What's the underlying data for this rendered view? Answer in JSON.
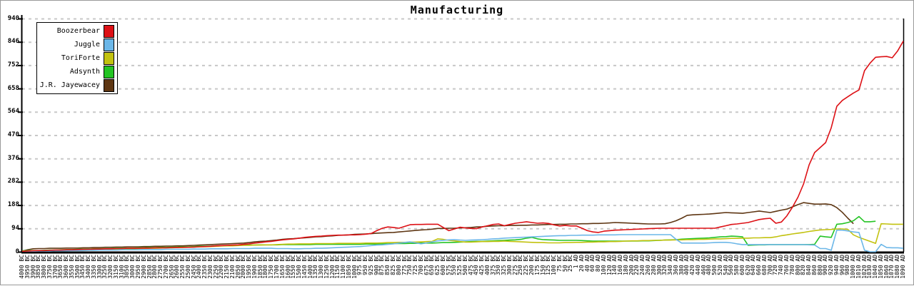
{
  "chart_data": {
    "type": "line",
    "title": "Manufacturing",
    "xlabel": "",
    "ylabel": "",
    "ylim": [
      0,
      940
    ],
    "y_ticks": [
      0,
      94,
      188,
      282,
      376,
      470,
      564,
      658,
      752,
      846,
      940
    ],
    "grid": "horizontal-dashed",
    "legend_position": "top-left",
    "grid_color": "#c8c8c8",
    "axis_color": "#000000",
    "categories": [
      "4000 BC",
      "3950 BC",
      "3900 BC",
      "3850 BC",
      "3800 BC",
      "3750 BC",
      "3700 BC",
      "3650 BC",
      "3600 BC",
      "3550 BC",
      "3500 BC",
      "3450 BC",
      "3400 BC",
      "3350 BC",
      "3300 BC",
      "3250 BC",
      "3200 BC",
      "3150 BC",
      "3100 BC",
      "3050 BC",
      "3000 BC",
      "2950 BC",
      "2900 BC",
      "2850 BC",
      "2800 BC",
      "2750 BC",
      "2700 BC",
      "2650 BC",
      "2600 BC",
      "2550 BC",
      "2500 BC",
      "2450 BC",
      "2400 BC",
      "2350 BC",
      "2300 BC",
      "2250 BC",
      "2200 BC",
      "2150 BC",
      "2100 BC",
      "2050 BC",
      "2000 BC",
      "1950 BC",
      "1900 BC",
      "1850 BC",
      "1800 BC",
      "1750 BC",
      "1700 BC",
      "1650 BC",
      "1600 BC",
      "1550 BC",
      "1500 BC",
      "1450 BC",
      "1400 BC",
      "1350 BC",
      "1300 BC",
      "1250 BC",
      "1200 BC",
      "1150 BC",
      "1100 BC",
      "1050 BC",
      "1000 BC",
      "975 BC",
      "950 BC",
      "925 BC",
      "900 BC",
      "875 BC",
      "850 BC",
      "825 BC",
      "800 BC",
      "775 BC",
      "750 BC",
      "725 BC",
      "700 BC",
      "675 BC",
      "650 BC",
      "625 BC",
      "600 BC",
      "575 BC",
      "550 BC",
      "525 BC",
      "500 BC",
      "475 BC",
      "450 BC",
      "425 BC",
      "400 BC",
      "375 BC",
      "350 BC",
      "325 BC",
      "300 BC",
      "275 BC",
      "250 BC",
      "225 BC",
      "200 BC",
      "175 BC",
      "150 BC",
      "125 BC",
      "100 BC",
      "75 BC",
      "50 BC",
      "25 BC",
      "1 AD",
      "20 AD",
      "40 AD",
      "60 AD",
      "80 AD",
      "100 AD",
      "120 AD",
      "140 AD",
      "160 AD",
      "180 AD",
      "200 AD",
      "220 AD",
      "240 AD",
      "260 AD",
      "280 AD",
      "300 AD",
      "320 AD",
      "340 AD",
      "360 AD",
      "380 AD",
      "400 AD",
      "420 AD",
      "440 AD",
      "460 AD",
      "480 AD",
      "500 AD",
      "520 AD",
      "540 AD",
      "560 AD",
      "580 AD",
      "600 AD",
      "620 AD",
      "640 AD",
      "660 AD",
      "680 AD",
      "700 AD",
      "720 AD",
      "740 AD",
      "760 AD",
      "780 AD",
      "800 AD",
      "820 AD",
      "840 AD",
      "860 AD",
      "880 AD",
      "900 AD",
      "920 AD",
      "940 AD",
      "960 AD",
      "980 AD",
      "1000 AD",
      "1010 AD",
      "1020 AD",
      "1030 AD",
      "1040 AD",
      "1050 AD",
      "1060 AD",
      "1070 AD",
      "1080 AD",
      "1090 AD"
    ],
    "series": [
      {
        "name": "Boozerbear",
        "color": "#dd1015",
        "values": [
          2,
          3,
          4,
          5,
          5,
          6,
          7,
          7,
          8,
          8,
          9,
          10,
          10,
          11,
          11,
          12,
          12,
          13,
          13,
          14,
          14,
          14,
          15,
          15,
          16,
          16,
          16,
          17,
          17,
          18,
          18,
          19,
          20,
          21,
          22,
          24,
          25,
          26,
          27,
          28,
          30,
          32,
          35,
          37,
          40,
          42,
          45,
          48,
          50,
          52,
          55,
          58,
          60,
          62,
          63,
          65,
          66,
          67,
          67,
          68,
          68,
          69,
          71,
          74,
          85,
          95,
          100,
          98,
          95,
          102,
          109,
          110,
          110,
          111,
          111,
          111,
          98,
          85,
          92,
          99,
          96,
          94,
          93,
          100,
          105,
          110,
          112,
          105,
          110,
          115,
          118,
          121,
          118,
          115,
          116,
          114,
          108,
          104,
          106,
          104,
          104,
          95,
          85,
          80,
          78,
          83,
          85,
          87,
          88,
          89,
          90,
          91,
          92,
          93,
          94,
          95,
          95,
          95,
          95,
          95,
          95,
          95,
          95,
          95,
          95,
          95,
          100,
          105,
          110,
          112,
          115,
          118,
          124,
          130,
          133,
          135,
          115,
          120,
          145,
          180,
          220,
          273,
          350,
          400,
          420,
          440,
          500,
          586,
          610,
          625,
          640,
          652,
          730,
          760,
          784,
          786,
          787,
          782,
          810,
          849
        ]
      },
      {
        "name": "Juggle",
        "color": "#6cb7e8",
        "values": [
          2,
          2,
          2,
          3,
          3,
          3,
          4,
          4,
          4,
          5,
          5,
          5,
          6,
          6,
          7,
          7,
          7,
          7,
          8,
          8,
          8,
          8,
          9,
          9,
          9,
          9,
          10,
          10,
          10,
          10,
          10,
          11,
          11,
          11,
          12,
          12,
          12,
          12,
          13,
          13,
          13,
          13,
          14,
          14,
          14,
          14,
          13,
          13,
          13,
          12,
          12,
          13,
          13,
          14,
          14,
          15,
          16,
          17,
          18,
          19,
          20,
          21,
          23,
          25,
          27,
          28,
          30,
          32,
          35,
          37,
          40,
          36,
          32,
          36,
          40,
          44,
          46,
          48,
          49,
          47,
          46,
          47,
          48,
          49,
          50,
          52,
          53,
          55,
          56,
          57,
          58,
          59,
          60,
          61,
          62,
          63,
          64,
          65,
          65,
          66,
          66,
          67,
          67,
          67,
          68,
          68,
          68,
          68,
          69,
          69,
          69,
          69,
          69,
          69,
          69,
          69,
          69,
          69,
          50,
          35,
          35,
          35,
          35,
          35,
          36,
          37,
          38,
          38,
          36,
          32,
          29,
          29,
          29,
          29,
          29,
          29,
          29,
          29,
          29,
          29,
          29,
          29,
          28,
          27,
          13,
          13,
          6,
          87,
          87,
          84,
          80,
          78,
          6,
          0,
          0,
          30,
          17,
          16,
          16,
          14
        ]
      },
      {
        "name": "ToriForte",
        "color": "#c2c20f",
        "values": [
          3,
          3,
          4,
          4,
          5,
          5,
          6,
          6,
          7,
          7,
          8,
          8,
          9,
          9,
          10,
          10,
          10,
          11,
          11,
          12,
          12,
          13,
          13,
          14,
          14,
          15,
          16,
          16,
          17,
          17,
          18,
          19,
          20,
          20,
          21,
          22,
          23,
          24,
          24,
          25,
          26,
          26,
          27,
          27,
          28,
          28,
          29,
          30,
          31,
          31,
          32,
          32,
          32,
          33,
          33,
          33,
          33,
          34,
          34,
          34,
          34,
          34,
          35,
          35,
          35,
          36,
          37,
          37,
          38,
          38,
          39,
          39,
          40,
          41,
          42,
          52,
          50,
          46,
          44,
          41,
          39,
          39,
          40,
          41,
          41,
          42,
          42,
          43,
          42,
          41,
          40,
          39,
          38,
          37,
          37,
          36,
          36,
          36,
          37,
          37,
          38,
          38,
          39,
          39,
          40,
          40,
          41,
          41,
          42,
          43,
          44,
          44,
          45,
          45,
          46,
          46,
          47,
          47,
          48,
          48,
          49,
          49,
          50,
          50,
          51,
          52,
          52,
          53,
          54,
          54,
          55,
          55,
          56,
          56,
          57,
          57,
          60,
          65,
          68,
          72,
          75,
          78,
          82,
          85,
          88,
          89,
          90,
          92,
          92,
          90,
          68,
          58,
          50,
          42,
          34,
          113,
          112,
          111,
          111,
          111
        ]
      },
      {
        "name": "Adsynth",
        "color": "#24c424",
        "values": [
          4,
          4,
          5,
          5,
          6,
          7,
          7,
          8,
          9,
          9,
          10,
          11,
          11,
          12,
          12,
          13,
          13,
          14,
          14,
          15,
          15,
          16,
          16,
          17,
          17,
          18,
          18,
          19,
          19,
          20,
          20,
          21,
          22,
          22,
          23,
          24,
          24,
          25,
          26,
          26,
          27,
          27,
          27,
          28,
          28,
          28,
          28,
          29,
          29,
          29,
          29,
          29,
          29,
          30,
          30,
          30,
          30,
          30,
          30,
          30,
          30,
          30,
          31,
          31,
          31,
          32,
          32,
          33,
          33,
          33,
          34,
          34,
          35,
          35,
          35,
          36,
          37,
          37,
          38,
          39,
          40,
          41,
          42,
          42,
          43,
          44,
          45,
          46,
          47,
          48,
          50,
          55,
          58,
          52,
          49,
          48,
          47,
          46,
          46,
          46,
          46,
          45,
          44,
          43,
          43,
          43,
          43,
          43,
          43,
          43,
          43,
          43,
          44,
          44,
          45,
          46,
          47,
          48,
          49,
          51,
          52,
          53,
          54,
          55,
          56,
          58,
          60,
          61,
          63,
          62,
          60,
          26,
          27,
          28,
          28,
          29,
          29,
          29,
          29,
          29,
          29,
          29,
          29,
          30,
          63,
          60,
          58,
          111,
          113,
          118,
          125,
          142,
          121,
          121,
          123,
          null,
          null,
          null,
          null,
          null
        ]
      },
      {
        "name": "J.R. Jayewacey",
        "color": "#5e3613",
        "values": [
          3,
          8,
          12,
          13,
          13,
          14,
          14,
          14,
          15,
          15,
          15,
          16,
          16,
          17,
          17,
          18,
          18,
          19,
          19,
          20,
          20,
          20,
          21,
          21,
          22,
          22,
          23,
          23,
          24,
          24,
          25,
          26,
          27,
          28,
          29,
          30,
          31,
          32,
          33,
          34,
          35,
          37,
          40,
          42,
          43,
          45,
          47,
          50,
          52,
          53,
          55,
          56,
          58,
          60,
          61,
          63,
          64,
          66,
          67,
          68,
          70,
          71,
          72,
          73,
          75,
          76,
          77,
          78,
          80,
          82,
          84,
          86,
          88,
          89,
          91,
          94,
          94,
          95,
          95,
          96,
          97,
          98,
          100,
          101,
          103,
          104,
          105,
          105,
          106,
          106,
          107,
          107,
          108,
          108,
          109,
          110,
          110,
          111,
          111,
          112,
          112,
          113,
          113,
          114,
          114,
          115,
          116,
          118,
          117,
          116,
          115,
          114,
          113,
          112,
          112,
          112,
          113,
          118,
          125,
          135,
          147,
          149,
          150,
          151,
          152,
          154,
          156,
          158,
          157,
          156,
          155,
          158,
          161,
          164,
          161,
          158,
          163,
          168,
          172,
          181,
          190,
          198,
          195,
          192,
          192,
          193,
          190,
          178,
          159,
          135,
          113,
          null,
          null,
          null,
          null,
          null,
          null,
          null,
          null,
          null
        ]
      }
    ]
  }
}
